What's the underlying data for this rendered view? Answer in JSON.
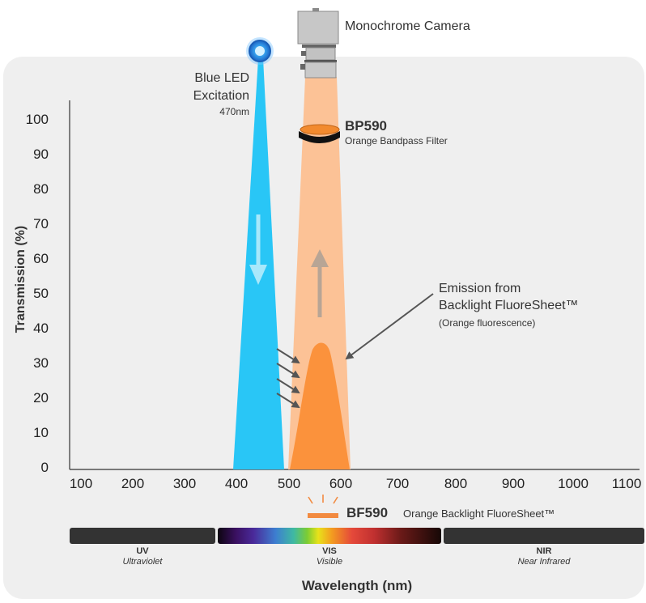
{
  "camera": {
    "label": "Monochrome Camera"
  },
  "led": {
    "line1": "Blue LED",
    "line2": "Excitation",
    "wavelength": "470nm"
  },
  "filter": {
    "name": "BP590",
    "description": "Orange Bandpass Filter"
  },
  "emission": {
    "line1": "Emission from",
    "line2": "Backlight FluoreSheet™",
    "note": "(Orange fluorescence)"
  },
  "sheet": {
    "name": "BF590",
    "description": "Orange Backlight FluoreSheet™"
  },
  "axes": {
    "ylabel": "Transmission (%)",
    "xlabel": "Wavelength (nm)",
    "y_ticks": [
      "0",
      "10",
      "20",
      "30",
      "40",
      "50",
      "60",
      "70",
      "80",
      "90",
      "100"
    ],
    "x_ticks": [
      "100",
      "200",
      "300",
      "400",
      "500",
      "600",
      "700",
      "800",
      "900",
      "1000",
      "1100"
    ]
  },
  "bands": [
    {
      "short": "UV",
      "long": "Ultraviolet"
    },
    {
      "short": "VIS",
      "long": "Visible"
    },
    {
      "short": "NIR",
      "long": "Near Infrared"
    }
  ],
  "colors": {
    "blue_beam": "#29c6f6",
    "orange_beam": "#fcc296",
    "emission_peak": "#fb923c",
    "filter": "#f28a2e",
    "panel": "#efefef",
    "band_dark": "#333333"
  }
}
